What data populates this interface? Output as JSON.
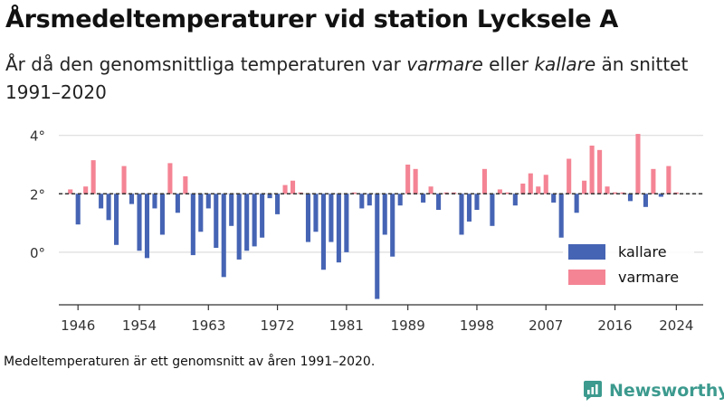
{
  "title": "Årsmedeltemperaturer vid station Lycksele A",
  "subtitle": {
    "part1": "År då den genomsnittliga temperaturen var ",
    "warm_word": "varmare",
    "part2": " eller ",
    "cold_word": "kallare",
    "part3": " än snittet 1991–2020"
  },
  "footnote": "Medeltemperaturen är ett genomsnitt av åren 1991–2020.",
  "brand": {
    "name": "Newsworthy",
    "icon": "newsworthy-logo-icon"
  },
  "colors": {
    "colder": "#4664b4",
    "warmer": "#f48494",
    "baseline": "#333333",
    "grid": "#dddddd"
  },
  "chart_data": {
    "type": "bar",
    "baseline": 2.0,
    "ylim": [
      -1.8,
      4.3
    ],
    "xlim": [
      1943.5,
      2027.5
    ],
    "y_ticks": [
      {
        "value": 4,
        "label": "4°"
      },
      {
        "value": 2,
        "label": "2°"
      },
      {
        "value": 0,
        "label": "0°"
      }
    ],
    "x_ticks": [
      1946,
      1954,
      1963,
      1972,
      1981,
      1989,
      1998,
      2007,
      2016,
      2024
    ],
    "legend": {
      "position": "bottom-right",
      "entries": [
        {
          "key": "colder",
          "label": "kallare"
        },
        {
          "key": "warmer",
          "label": "varmare"
        }
      ]
    },
    "x": [
      1945,
      1946,
      1947,
      1948,
      1949,
      1950,
      1951,
      1952,
      1953,
      1954,
      1955,
      1956,
      1957,
      1958,
      1959,
      1960,
      1961,
      1962,
      1963,
      1964,
      1965,
      1966,
      1967,
      1968,
      1969,
      1970,
      1971,
      1972,
      1973,
      1974,
      1975,
      1976,
      1977,
      1978,
      1979,
      1980,
      1981,
      1982,
      1983,
      1984,
      1985,
      1986,
      1987,
      1988,
      1989,
      1990,
      1991,
      1992,
      1993,
      1994,
      1995,
      1996,
      1997,
      1998,
      1999,
      2000,
      2001,
      2002,
      2003,
      2004,
      2005,
      2006,
      2007,
      2008,
      2009,
      2010,
      2011,
      2012,
      2013,
      2014,
      2015,
      2016,
      2017,
      2018,
      2019,
      2020,
      2021,
      2022,
      2023,
      2024
    ],
    "values": [
      2.15,
      0.95,
      2.25,
      3.15,
      1.5,
      1.1,
      0.25,
      2.95,
      1.65,
      0.05,
      -0.2,
      1.5,
      0.6,
      3.05,
      1.35,
      2.6,
      -0.1,
      0.7,
      1.5,
      0.15,
      -0.85,
      0.9,
      -0.25,
      0.05,
      0.2,
      0.5,
      1.85,
      1.3,
      2.3,
      2.45,
      2.0,
      0.35,
      0.7,
      -0.6,
      0.35,
      -0.35,
      0.0,
      2.0,
      1.5,
      1.6,
      -1.6,
      0.6,
      -0.15,
      1.6,
      3.0,
      2.85,
      1.7,
      2.25,
      1.45,
      2.0,
      2.0,
      0.6,
      1.05,
      1.45,
      2.85,
      0.9,
      2.15,
      2.0,
      1.6,
      2.35,
      2.7,
      2.25,
      2.65,
      1.7,
      0.5,
      3.2,
      1.35,
      2.45,
      3.65,
      3.5,
      2.25,
      2.05,
      2.0,
      1.75,
      4.05,
      1.55,
      2.85,
      1.9,
      2.95,
      2.0
    ]
  }
}
